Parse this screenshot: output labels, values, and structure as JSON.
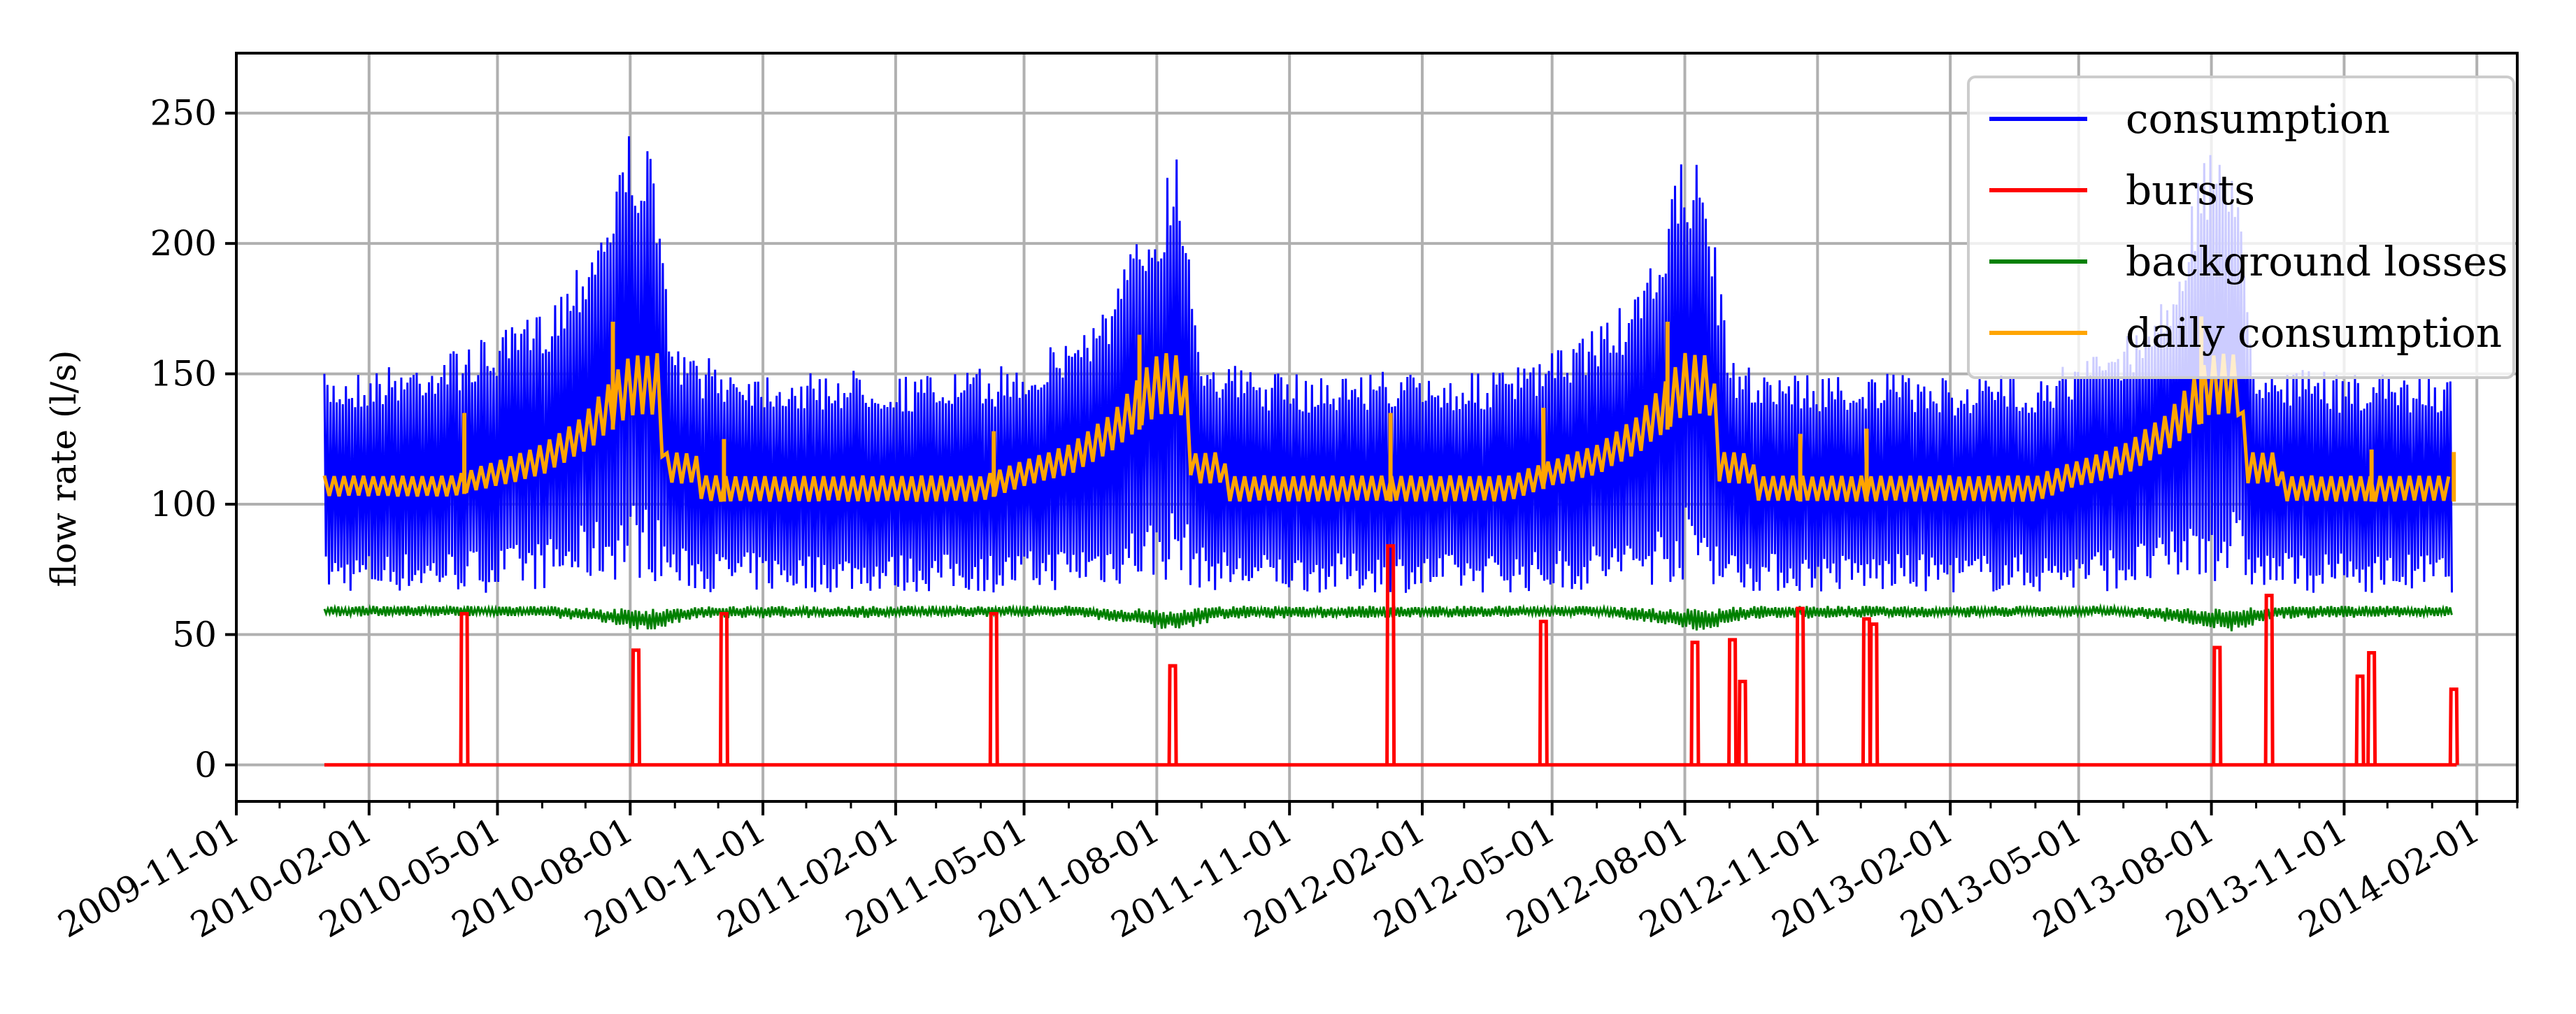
{
  "chart_data": {
    "type": "line",
    "title": "",
    "xlabel": "",
    "ylabel": "flow rate (l/s)",
    "xlim": [
      "2009-11-01",
      "2014-03-01"
    ],
    "ylim": [
      -14,
      273
    ],
    "yticks": [
      0,
      50,
      100,
      150,
      200,
      250
    ],
    "xticks": [
      "2009-11-01",
      "2010-02-01",
      "2010-05-01",
      "2010-08-01",
      "2010-11-01",
      "2011-02-01",
      "2011-05-01",
      "2011-08-01",
      "2011-11-01",
      "2012-02-01",
      "2012-05-01",
      "2012-08-01",
      "2012-11-01",
      "2013-02-01",
      "2013-05-01",
      "2013-08-01",
      "2013-11-01",
      "2014-02-01"
    ],
    "grid": true,
    "legend_position": "top-right",
    "series": [
      {
        "name": "consumption",
        "color": "#0000ff",
        "style": "band",
        "x": [
          "2010-01-01",
          "2010-02-01",
          "2010-03-01",
          "2010-04-01",
          "2010-05-01",
          "2010-06-01",
          "2010-06-15",
          "2010-07-01",
          "2010-07-15",
          "2010-08-01",
          "2010-08-15",
          "2010-09-01",
          "2010-10-01",
          "2010-11-01",
          "2010-12-01",
          "2011-01-01",
          "2011-02-01",
          "2011-03-01",
          "2011-04-01",
          "2011-05-01",
          "2011-06-01",
          "2011-07-01",
          "2011-07-15",
          "2011-08-01",
          "2011-08-15",
          "2011-09-01",
          "2011-10-01",
          "2011-11-01",
          "2011-12-01",
          "2012-01-01",
          "2012-02-01",
          "2012-03-01",
          "2012-04-01",
          "2012-05-01",
          "2012-06-01",
          "2012-07-01",
          "2012-07-15",
          "2012-08-01",
          "2012-08-15",
          "2012-09-01",
          "2012-10-01",
          "2012-11-01",
          "2012-12-01",
          "2013-01-01",
          "2013-02-01",
          "2013-03-01",
          "2013-04-01",
          "2013-05-01",
          "2013-06-01",
          "2013-07-01",
          "2013-07-15",
          "2013-08-01",
          "2013-08-15",
          "2013-09-01",
          "2013-10-01",
          "2013-11-01",
          "2013-12-01",
          "2014-01-01",
          "2014-01-15"
        ],
        "y_low": [
          66,
          66,
          66,
          66,
          66,
          67,
          68,
          69,
          70,
          71,
          71,
          67,
          66,
          66,
          66,
          66,
          66,
          66,
          66,
          66,
          67,
          68,
          69,
          70,
          70,
          67,
          66,
          66,
          66,
          66,
          66,
          66,
          66,
          66,
          67,
          68,
          69,
          70,
          70,
          67,
          66,
          66,
          66,
          66,
          66,
          66,
          66,
          66,
          67,
          68,
          69,
          70,
          70,
          67,
          66,
          66,
          66,
          66,
          66
        ],
        "y_high": [
          150,
          152,
          155,
          160,
          165,
          175,
          185,
          200,
          215,
          245,
          235,
          160,
          155,
          152,
          150,
          152,
          150,
          150,
          152,
          155,
          165,
          180,
          200,
          215,
          240,
          160,
          152,
          150,
          150,
          152,
          150,
          150,
          152,
          158,
          170,
          180,
          205,
          235,
          230,
          155,
          152,
          150,
          150,
          150,
          148,
          150,
          150,
          155,
          165,
          180,
          210,
          240,
          240,
          155,
          152,
          150,
          150,
          150,
          148
        ]
      },
      {
        "name": "bursts",
        "color": "#ff0000",
        "style": "spikes",
        "baseline": 0,
        "x": [
          "2010-04-08",
          "2010-08-05",
          "2010-10-05",
          "2011-04-10",
          "2011-08-12",
          "2012-01-10",
          "2012-04-25",
          "2012-08-08",
          "2012-09-03",
          "2012-09-10",
          "2012-10-20",
          "2012-12-05",
          "2012-12-10",
          "2013-08-05",
          "2013-09-10",
          "2013-11-12",
          "2013-11-20",
          "2014-01-16"
        ],
        "values": [
          58,
          44,
          58,
          58,
          38,
          84,
          55,
          47,
          48,
          32,
          60,
          56,
          54,
          45,
          65,
          34,
          43,
          29
        ]
      },
      {
        "name": "background losses",
        "color": "#008000",
        "style": "band",
        "x": [
          "2010-01-01",
          "2010-06-01",
          "2010-07-15",
          "2010-08-15",
          "2010-09-15",
          "2011-06-01",
          "2011-07-15",
          "2011-08-15",
          "2011-09-15",
          "2012-06-01",
          "2012-07-15",
          "2012-08-15",
          "2012-09-15",
          "2013-06-01",
          "2013-07-15",
          "2013-08-15",
          "2013-09-15",
          "2014-01-15"
        ],
        "y_low": [
          57,
          57,
          54,
          51,
          56,
          57,
          54,
          51,
          56,
          57,
          54,
          51,
          56,
          57,
          54,
          51,
          56,
          57
        ],
        "y_high": [
          61,
          61,
          60,
          60,
          61,
          61,
          60,
          60,
          61,
          61,
          60,
          60,
          61,
          61,
          60,
          60,
          61,
          61
        ]
      },
      {
        "name": "daily consumption",
        "color": "#ffa500",
        "style": "band",
        "x": [
          "2010-01-01",
          "2010-04-01",
          "2010-05-01",
          "2010-06-01",
          "2010-07-01",
          "2010-08-01",
          "2010-08-20",
          "2010-08-25",
          "2010-09-15",
          "2010-09-20",
          "2011-04-01",
          "2011-05-01",
          "2011-06-01",
          "2011-07-01",
          "2011-08-01",
          "2011-08-20",
          "2011-08-25",
          "2011-09-15",
          "2011-09-20",
          "2012-04-01",
          "2012-05-01",
          "2012-06-01",
          "2012-07-01",
          "2012-08-01",
          "2012-08-20",
          "2012-08-25",
          "2012-09-15",
          "2012-09-20",
          "2013-04-01",
          "2013-05-01",
          "2013-06-01",
          "2013-07-01",
          "2013-08-01",
          "2013-08-20",
          "2013-08-25",
          "2013-09-15",
          "2013-09-20",
          "2014-01-15"
        ],
        "y_low": [
          103,
          103,
          107,
          111,
          120,
          134,
          134,
          108,
          108,
          101,
          101,
          107,
          111,
          120,
          134,
          134,
          108,
          108,
          101,
          101,
          107,
          111,
          120,
          134,
          134,
          108,
          108,
          101,
          101,
          107,
          111,
          120,
          134,
          134,
          108,
          108,
          101,
          101
        ],
        "y_high": [
          111,
          111,
          117,
          123,
          135,
          158,
          158,
          120,
          120,
          111,
          111,
          117,
          123,
          135,
          158,
          158,
          120,
          120,
          111,
          111,
          117,
          123,
          135,
          158,
          158,
          120,
          120,
          111,
          111,
          117,
          123,
          135,
          158,
          158,
          120,
          120,
          111,
          111
        ]
      }
    ],
    "peaks": {
      "daily consumption": {
        "x": [
          "2010-04-08",
          "2010-07-20",
          "2010-10-05",
          "2011-04-10",
          "2011-07-20",
          "2012-01-10",
          "2012-04-25",
          "2012-07-20",
          "2012-10-20",
          "2012-12-05",
          "2013-07-25",
          "2013-11-20",
          "2014-01-16"
        ],
        "values": [
          135,
          170,
          125,
          128,
          165,
          135,
          137,
          170,
          127,
          129,
          172,
          121,
          120
        ]
      }
    }
  }
}
